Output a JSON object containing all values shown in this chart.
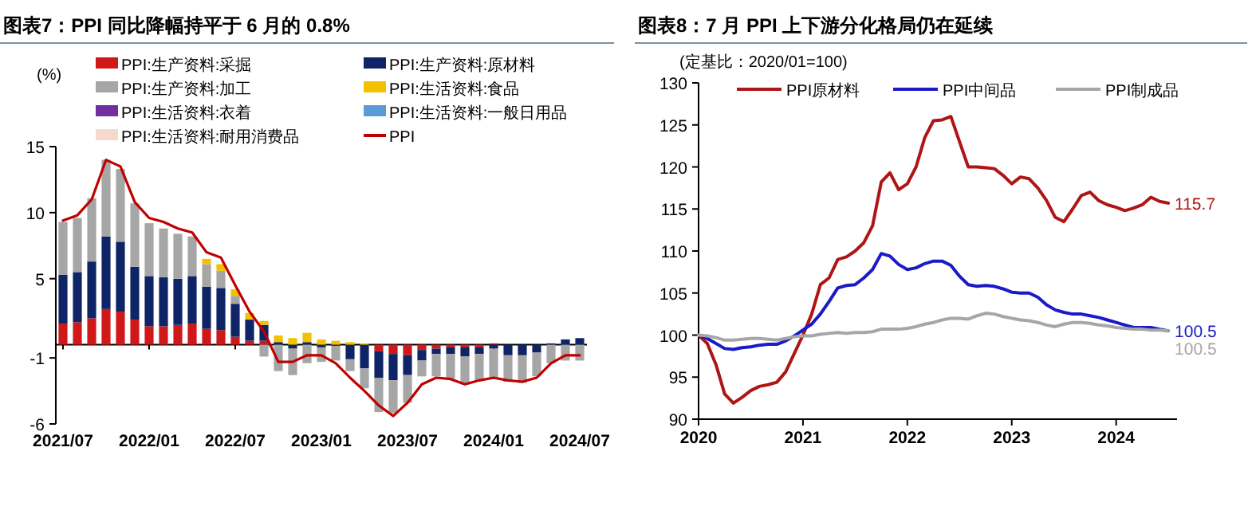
{
  "chart_data": [
    {
      "type": "bar",
      "stacked": true,
      "title": "图表7：PPI 同比降幅持平于 6 月的 0.8%",
      "ylabel": "(%)",
      "legend": "top",
      "categories": [
        "2021/07",
        null,
        null,
        null,
        null,
        null,
        "2022/01",
        null,
        null,
        null,
        null,
        null,
        "2022/07",
        null,
        null,
        null,
        null,
        null,
        "2023/01",
        null,
        null,
        null,
        null,
        null,
        "2023/07",
        null,
        null,
        null,
        null,
        null,
        "2024/01",
        null,
        null,
        null,
        null,
        null,
        "2024/07"
      ],
      "ylim": [
        -6,
        15
      ],
      "yticks": [
        -6,
        -1,
        5,
        10,
        15
      ],
      "series": [
        {
          "name": "PPI:生产资料:采掘",
          "color": "#d01818",
          "values": [
            1.6,
            1.7,
            2.0,
            2.7,
            2.5,
            1.9,
            1.4,
            1.4,
            1.5,
            1.6,
            1.2,
            1.1,
            0.6,
            0.3,
            0.3,
            0,
            0,
            0,
            0,
            0,
            0,
            0,
            -0.5,
            -0.7,
            -0.8,
            -0.4,
            -0.3,
            -0.2,
            -0.2,
            -0.2,
            0.1,
            0,
            0,
            0,
            0,
            0,
            0
          ]
        },
        {
          "name": "PPI:生产资料:原材料",
          "color": "#0f2466",
          "values": [
            3.7,
            3.8,
            4.3,
            5.5,
            5.3,
            4.0,
            3.8,
            3.7,
            3.5,
            3.6,
            3.2,
            3.2,
            2.5,
            1.6,
            1.2,
            0.2,
            -0.3,
            0.2,
            -0.2,
            -0.1,
            -1.1,
            -1.8,
            -2.0,
            -2.0,
            -1.5,
            -0.8,
            -0.4,
            -0.5,
            -0.7,
            -0.5,
            -0.3,
            -0.8,
            -0.8,
            -0.6,
            0.1,
            0.4,
            0.5
          ]
        },
        {
          "name": "PPI:生产资料:加工",
          "color": "#a6a6a6",
          "values": [
            4.0,
            4.1,
            4.8,
            5.8,
            5.5,
            4.8,
            4.0,
            3.7,
            3.4,
            3.0,
            1.7,
            1.3,
            0.6,
            null,
            -0.9,
            -2.0,
            -2.0,
            -1.4,
            -1.1,
            -1.1,
            -0.9,
            -1.5,
            -2.6,
            -2.5,
            -2.1,
            -1.2,
            -1.7,
            -1.9,
            -2.1,
            -2.0,
            -2.3,
            -2.0,
            -2.1,
            -1.8,
            -1.4,
            -1.2,
            -1.2
          ]
        },
        {
          "name": "PPI:生活资料:食品",
          "color": "#f2c200",
          "values": [
            0,
            0,
            0,
            0,
            0,
            0,
            0,
            0,
            0,
            0,
            0.4,
            0.5,
            0.5,
            0.5,
            0.3,
            0.5,
            0.5,
            0.7,
            0.4,
            0.3,
            0.2,
            0.1,
            0,
            0,
            0,
            0,
            0,
            0,
            0,
            0,
            0,
            0,
            0,
            0,
            0,
            0,
            0
          ]
        },
        {
          "name": "PPI:生活资料:衣着",
          "color": "#7030a0",
          "values": [
            0,
            0,
            0,
            0,
            0,
            0,
            0,
            0,
            0,
            0,
            0,
            0,
            0,
            0,
            0,
            0,
            0,
            0,
            0,
            0,
            0,
            0,
            0,
            0,
            0,
            0,
            0,
            0,
            0,
            0,
            0,
            0,
            0,
            0,
            0,
            0,
            0
          ]
        },
        {
          "name": "PPI:生活资料:一般日用品",
          "color": "#5b9bd5",
          "values": [
            0,
            0,
            0,
            0,
            0,
            0,
            0,
            0,
            0,
            0,
            0,
            0,
            0,
            0,
            0,
            0,
            0,
            0,
            0,
            0,
            0,
            0,
            0,
            0,
            0,
            0,
            0,
            0,
            0,
            0,
            0,
            0,
            0,
            0,
            0,
            0,
            0
          ]
        },
        {
          "name": "PPI:生活资料:耐用消费品",
          "color": "#f6d8cf",
          "values": [
            0,
            0,
            0,
            0,
            0,
            0,
            0,
            0,
            0,
            0,
            0,
            0,
            0,
            0,
            0,
            0,
            0,
            0,
            0,
            0,
            0,
            0,
            0,
            0,
            0,
            0,
            0,
            0,
            0,
            0,
            0,
            0,
            0,
            0,
            0,
            null,
            null
          ]
        },
        {
          "name": "PPI",
          "type": "line",
          "color": "#c00000",
          "values": [
            9.4,
            9.8,
            11.0,
            14.0,
            13.5,
            10.8,
            9.6,
            9.3,
            8.8,
            8.5,
            7.0,
            6.6,
            4.5,
            2.5,
            1.0,
            -1.3,
            -1.3,
            -0.8,
            -0.8,
            -1.4,
            -2.5,
            -3.5,
            -4.6,
            -5.4,
            -4.4,
            -3.0,
            -2.5,
            -2.6,
            -3.0,
            -2.7,
            -2.5,
            -2.7,
            -2.8,
            -2.5,
            -1.4,
            -0.8,
            -0.8
          ]
        }
      ]
    },
    {
      "type": "line",
      "title": "图表8：7 月 PPI 上下游分化格局仍在延续",
      "ylabel": "(定基比：2020/01=100)",
      "legend": "top",
      "x": [
        "2020-01",
        "2020-02",
        "2020-03",
        "2020-04",
        "2020-05",
        "2020-06",
        "2020-07",
        "2020-08",
        "2020-09",
        "2020-10",
        "2020-11",
        "2020-12",
        "2021-01",
        "2021-02",
        "2021-03",
        "2021-04",
        "2021-05",
        "2021-06",
        "2021-07",
        "2021-08",
        "2021-09",
        "2021-10",
        "2021-11",
        "2021-12",
        "2022-01",
        "2022-02",
        "2022-03",
        "2022-04",
        "2022-05",
        "2022-06",
        "2022-07",
        "2022-08",
        "2022-09",
        "2022-10",
        "2022-11",
        "2022-12",
        "2023-01",
        "2023-02",
        "2023-03",
        "2023-04",
        "2023-05",
        "2023-06",
        "2023-07",
        "2023-08",
        "2023-09",
        "2023-10",
        "2023-11",
        "2023-12",
        "2024-01",
        "2024-02",
        "2024-03",
        "2024-04",
        "2024-05",
        "2024-06",
        "2024-07"
      ],
      "xlim": [
        "2020-01",
        "2024-08"
      ],
      "xticks": [
        "2020",
        "2021",
        "2022",
        "2023",
        "2024"
      ],
      "ylim": [
        90,
        130
      ],
      "yticks": [
        90,
        95,
        100,
        105,
        110,
        115,
        120,
        125,
        130
      ],
      "series": [
        {
          "name": "PPI原材料",
          "color": "#b01515",
          "values": [
            100,
            99,
            96.5,
            93,
            91.9,
            92.6,
            93.4,
            93.9,
            94.1,
            94.4,
            95.6,
            97.8,
            100,
            102.5,
            106,
            106.8,
            109,
            109.3,
            110,
            111,
            113,
            118.2,
            119.3,
            117.3,
            118,
            120,
            123.5,
            125.5,
            125.6,
            126,
            123,
            120,
            120,
            119.9,
            119.8,
            119,
            118,
            118.8,
            118.6,
            117.5,
            116,
            114,
            113.5,
            115,
            116.6,
            117,
            116,
            115.5,
            115.2,
            114.8,
            115.1,
            115.5,
            116.4,
            115.9,
            115.7
          ]
        },
        {
          "name": "PPI中间品",
          "color": "#1a1ac8",
          "values": [
            100,
            99.6,
            99.0,
            98.4,
            98.3,
            98.5,
            98.6,
            98.8,
            98.9,
            98.9,
            99.3,
            99.9,
            100.6,
            101.3,
            102.5,
            104.0,
            105.6,
            105.9,
            106.0,
            106.8,
            107.8,
            109.7,
            109.4,
            108.4,
            107.8,
            108.0,
            108.5,
            108.8,
            108.8,
            108.3,
            107.0,
            106.0,
            105.8,
            105.9,
            105.8,
            105.5,
            105.1,
            105.0,
            105.0,
            104.5,
            103.6,
            103.0,
            102.7,
            102.5,
            102.5,
            102.3,
            102.1,
            101.8,
            101.5,
            101.2,
            100.9,
            100.9,
            100.9,
            100.7,
            100.5
          ]
        },
        {
          "name": "PPI制成品",
          "color": "#a6a6a6",
          "values": [
            100,
            99.9,
            99.7,
            99.4,
            99.4,
            99.5,
            99.6,
            99.6,
            99.5,
            99.4,
            99.6,
            99.8,
            99.9,
            99.9,
            100.1,
            100.2,
            100.3,
            100.2,
            100.3,
            100.3,
            100.4,
            100.7,
            100.7,
            100.7,
            100.8,
            101.0,
            101.3,
            101.5,
            101.8,
            102.0,
            102.0,
            101.9,
            102.3,
            102.6,
            102.5,
            102.2,
            102.0,
            101.8,
            101.7,
            101.5,
            101.2,
            101.0,
            101.3,
            101.5,
            101.5,
            101.4,
            101.2,
            101.1,
            100.9,
            100.8,
            100.7,
            100.7,
            100.6,
            100.6,
            100.5
          ]
        }
      ],
      "annotations": [
        {
          "text": "115.7",
          "x": "2024-07",
          "y": 115.7
        },
        {
          "text": "100.5",
          "x": "2024-07",
          "y": 100.5
        },
        {
          "text": "100.5",
          "x": "2024-07",
          "y": 100.5
        }
      ]
    }
  ]
}
